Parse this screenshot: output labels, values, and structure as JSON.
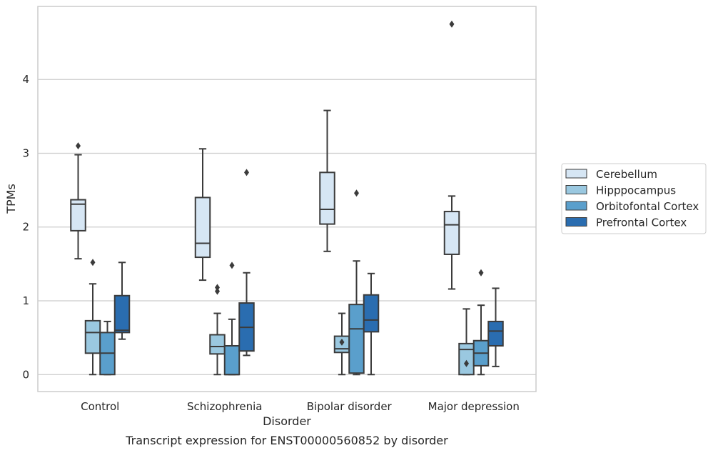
{
  "chart_data": {
    "type": "box",
    "caption": "Transcript expression for ENST00000560852 by disorder",
    "xlabel": "Disorder",
    "ylabel": "TPMs",
    "ylim": [
      -0.23,
      4.99
    ],
    "yticks": [
      0,
      1,
      2,
      3,
      4
    ],
    "grid": "horizontal",
    "legend_position": "right",
    "categories": [
      "Control",
      "Schizophrenia",
      "Bipolar disorder",
      "Major depression"
    ],
    "series": [
      {
        "name": "Cerebellum",
        "color": "#d6e6f4",
        "boxes": [
          {
            "whislo": 1.57,
            "q1": 1.95,
            "med": 2.31,
            "q3": 2.37,
            "whishi": 2.98,
            "fliers": [
              3.1
            ]
          },
          {
            "whislo": 1.28,
            "q1": 1.59,
            "med": 1.78,
            "q3": 2.4,
            "whishi": 3.06,
            "fliers": []
          },
          {
            "whislo": 1.67,
            "q1": 2.04,
            "med": 2.24,
            "q3": 2.74,
            "whishi": 3.58,
            "fliers": []
          },
          {
            "whislo": 1.16,
            "q1": 1.63,
            "med": 2.03,
            "q3": 2.21,
            "whishi": 2.42,
            "fliers": [
              4.75
            ]
          }
        ]
      },
      {
        "name": "Hipppocampus",
        "color": "#9ac8e0",
        "boxes": [
          {
            "whislo": 0.0,
            "q1": 0.29,
            "med": 0.57,
            "q3": 0.73,
            "whishi": 1.23,
            "fliers": [
              1.52
            ]
          },
          {
            "whislo": 0.0,
            "q1": 0.28,
            "med": 0.38,
            "q3": 0.54,
            "whishi": 0.83,
            "fliers": [
              1.18,
              1.13
            ]
          },
          {
            "whislo": 0.0,
            "q1": 0.3,
            "med": 0.35,
            "q3": 0.52,
            "whishi": 0.83,
            "fliers": [
              0.44
            ]
          },
          {
            "whislo": 0.0,
            "q1": 0.0,
            "med": 0.34,
            "q3": 0.42,
            "whishi": 0.89,
            "fliers": [
              0.15
            ]
          }
        ]
      },
      {
        "name": "Orbitofontal Cortex",
        "color": "#5a9fcc",
        "boxes": [
          {
            "whislo": 0.0,
            "q1": 0.0,
            "med": 0.29,
            "q3": 0.57,
            "whishi": 0.72,
            "fliers": []
          },
          {
            "whislo": 0.0,
            "q1": 0.0,
            "med": 0.0,
            "q3": 0.39,
            "whishi": 0.75,
            "fliers": [
              1.48
            ]
          },
          {
            "whislo": 0.0,
            "q1": 0.02,
            "med": 0.62,
            "q3": 0.95,
            "whishi": 1.54,
            "fliers": [
              2.46
            ]
          },
          {
            "whislo": 0.0,
            "q1": 0.12,
            "med": 0.29,
            "q3": 0.46,
            "whishi": 0.94,
            "fliers": [
              1.38
            ]
          }
        ]
      },
      {
        "name": "Prefrontal Cortex",
        "color": "#2a6db0",
        "boxes": [
          {
            "whislo": 0.48,
            "q1": 0.57,
            "med": 0.6,
            "q3": 1.07,
            "whishi": 1.52,
            "fliers": []
          },
          {
            "whislo": 0.26,
            "q1": 0.32,
            "med": 0.64,
            "q3": 0.97,
            "whishi": 1.38,
            "fliers": [
              2.74
            ]
          },
          {
            "whislo": 0.0,
            "q1": 0.58,
            "med": 0.74,
            "q3": 1.08,
            "whishi": 1.37,
            "fliers": []
          },
          {
            "whislo": 0.11,
            "q1": 0.39,
            "med": 0.59,
            "q3": 0.72,
            "whishi": 1.17,
            "fliers": []
          }
        ]
      }
    ]
  }
}
